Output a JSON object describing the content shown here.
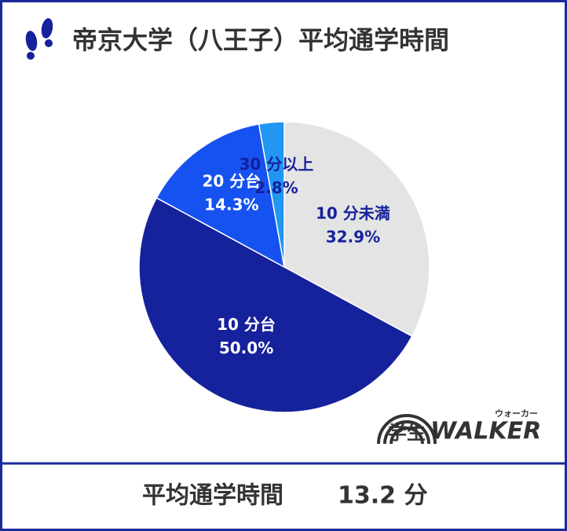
{
  "chart_data": {
    "type": "pie",
    "title": "帝京大学（八王子）平均通学時間",
    "categories": [
      "10 分未満",
      "10 分台",
      "20 分台",
      "30 分以上"
    ],
    "values": [
      32.9,
      50.0,
      14.3,
      2.8
    ],
    "value_labels": [
      "32.9%",
      "50.0%",
      "14.3%",
      "2.8%"
    ],
    "colors": [
      "#e4e4e4",
      "#16219c",
      "#1652f0",
      "#2196f3"
    ],
    "label_colors": [
      "#16219c",
      "#ffffff",
      "#ffffff",
      "#16219c"
    ]
  },
  "footer": {
    "label": "平均通学時間",
    "value": "13.2 分"
  },
  "logo": {
    "text": "学生",
    "brand": "WALKER",
    "reading": "ウォーカー"
  }
}
